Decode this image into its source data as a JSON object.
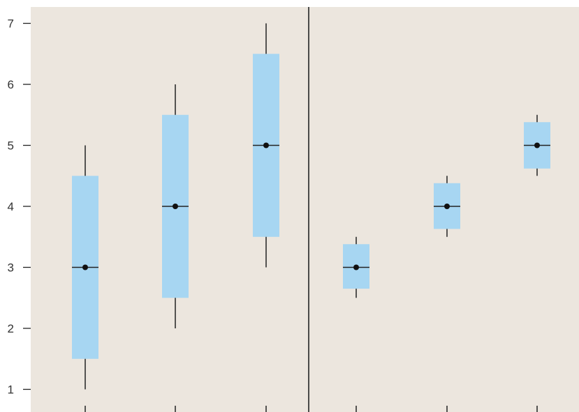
{
  "colors": {
    "background": "#ece6de",
    "box_fill": "#a7d6f2",
    "line": "#222222",
    "median_dot": "#111111"
  },
  "chart_data": {
    "type": "box",
    "title": "",
    "xlabel": "",
    "ylabel": "",
    "ylim": [
      1,
      7
    ],
    "y_ticks": [
      "1",
      "2",
      "3",
      "4",
      "5",
      "6",
      "7"
    ],
    "divider_after_group": 3,
    "grid": false,
    "legend": "none",
    "boxes": [
      {
        "whisker_low": 1.0,
        "q1": 1.5,
        "median": 3.0,
        "q3": 4.5,
        "whisker_high": 5.0
      },
      {
        "whisker_low": 2.0,
        "q1": 2.5,
        "median": 4.0,
        "q3": 5.5,
        "whisker_high": 6.0
      },
      {
        "whisker_low": 3.0,
        "q1": 3.5,
        "median": 5.0,
        "q3": 6.5,
        "whisker_high": 7.0
      },
      {
        "whisker_low": 2.5,
        "q1": 2.65,
        "median": 3.0,
        "q3": 3.38,
        "whisker_high": 3.5
      },
      {
        "whisker_low": 3.5,
        "q1": 3.63,
        "median": 4.0,
        "q3": 4.38,
        "whisker_high": 4.5
      },
      {
        "whisker_low": 4.5,
        "q1": 4.62,
        "median": 5.0,
        "q3": 5.38,
        "whisker_high": 5.5
      }
    ]
  }
}
